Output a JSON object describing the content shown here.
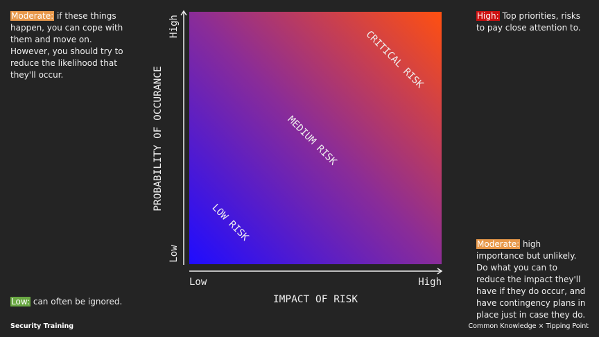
{
  "notes": {
    "top_left": {
      "label": "Moderate:",
      "text": "if these things happen, you can cope with them and move on. However, you should try to reduce the likelihood that they'll occur."
    },
    "top_right": {
      "label": "High:",
      "text": "Top priorities, risks to pay close attention to."
    },
    "bottom_right": {
      "label": "Moderate:",
      "text": "high importance but unlikely. Do what you can to reduce the impact they'll have if they do occur, and have contingency plans in place just in case they do."
    },
    "bottom_left": {
      "label": "Low:",
      "text": "can often be ignored."
    }
  },
  "matrix": {
    "y_axis": {
      "title": "PROBABILITY OF OCCURANCE",
      "high": "High",
      "low": "Low"
    },
    "x_axis": {
      "title": "IMPACT OF RISK",
      "low": "Low",
      "high": "High"
    },
    "regions": {
      "critical": "CRITICAL RISK",
      "medium": "MEDIUM RISK",
      "low": "LOW RISK"
    }
  },
  "footer": {
    "left": "Security Training",
    "right": "Common Knowledge × Tipping Point"
  }
}
